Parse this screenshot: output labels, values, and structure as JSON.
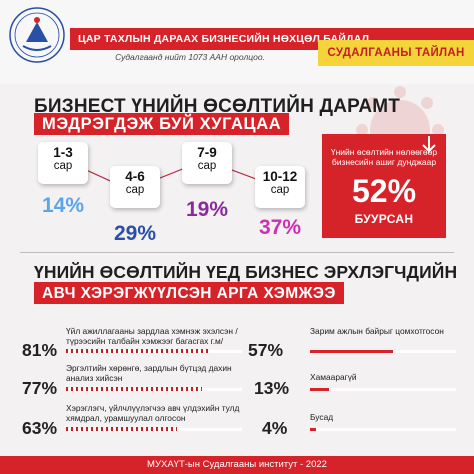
{
  "header": {
    "title": "ЦАР ТАХЛЫН ДАРААХ БИЗНЕСИЙН НӨХЦӨЛ БАЙДАЛ",
    "subtitle": "Судалгаанд нийт 1073 ААН оролцоо.",
    "report_tag": "СУДАЛГААНЫ ТАЙЛАН",
    "logo_icon": "institute-emblem-icon"
  },
  "section1": {
    "title": "БИЗНЕСТ ҮНИЙН ӨСӨЛТИЙН ДАРАМТ",
    "title_red": "МЭДРЭГДЭЖ БУЙ ХУГАЦАА",
    "periods": [
      {
        "range": "1-3",
        "unit": "сар",
        "pct": "14%",
        "color": "#5aa6e8"
      },
      {
        "range": "4-6",
        "unit": "сар",
        "pct": "29%",
        "color": "#2a4fa6"
      },
      {
        "range": "7-9",
        "unit": "сар",
        "pct": "19%",
        "color": "#8a2aa0"
      },
      {
        "range": "10-12",
        "unit": "сар",
        "pct": "37%",
        "color": "#cf2fb4"
      }
    ],
    "card": {
      "description": "Үнийн өсөлтийн нөлөөгөөр бизнесийн ашиг дунджаар",
      "value": "52%",
      "label": "БУУРСАН"
    }
  },
  "section2": {
    "title": "ҮНИЙН ӨСӨЛТИЙН ҮЕД БИЗНЕС ЭРХЛЭГЧДИЙН",
    "title_red": "АВЧ ХЭРЭГЖҮҮЛСЭН АРГА ХЭМЖЭЭ",
    "left_measures": [
      {
        "pct": "81%",
        "value": 81,
        "text": "Үйл ажиллагааны зардлаа хэмнэж эхэлсэн /түрээсийн талбайн хэмжээг багасгах г.м/"
      },
      {
        "pct": "77%",
        "value": 77,
        "text": "Эргэлтийн хөрөнгө, зардлын бүтцэд дахин анализ хийсэн"
      },
      {
        "pct": "63%",
        "value": 63,
        "text": "Хэрэглэгч, үйлчлүүлэгчээ авч үлдэхийн тулд хямдрал, урамшуулал олгосон"
      }
    ],
    "right_measures": [
      {
        "pct": "57%",
        "value": 57,
        "text": "Зарим ажлын байрыг цомхотгосон"
      },
      {
        "pct": "13%",
        "value": 13,
        "text": "Хамаарагүй"
      },
      {
        "pct": "4%",
        "value": 4,
        "text": "Бусад"
      }
    ]
  },
  "footer": {
    "text": "МУХАҮТ-ын Судалгааны институт - 2022"
  },
  "colors": {
    "brand_red": "#d6232a",
    "tag_yellow": "#f5d33a"
  }
}
